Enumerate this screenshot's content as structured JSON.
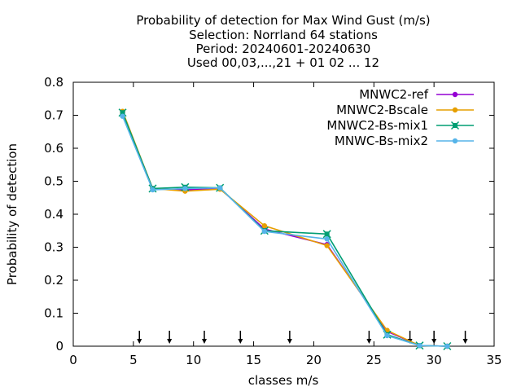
{
  "chart_data": {
    "type": "line",
    "title_lines": [
      "Probability of detection  for Max Wind Gust (m/s)",
      "Selection: Norrland     64 stations",
      "Period: 20240601-20240630",
      "Used 00,03,...,21 + 01 02 ... 12"
    ],
    "xlabel": "classes m/s",
    "ylabel": "Probability of detection",
    "xlim": [
      0,
      35
    ],
    "ylim": [
      0,
      0.8
    ],
    "xticks": [
      0,
      5,
      10,
      15,
      20,
      25,
      30,
      35
    ],
    "yticks": [
      0,
      0.1,
      0.2,
      0.3,
      0.4,
      0.5,
      0.6,
      0.7,
      0.8
    ],
    "ytick_labels": [
      "0",
      "0.1",
      "0.2",
      "0.3",
      "0.4",
      "0.5",
      "0.6",
      "0.7",
      "0.8"
    ],
    "grid": false,
    "legend_position": "top-right",
    "class_markers": [
      5.5,
      8,
      10.9,
      13.9,
      18,
      24.6,
      28,
      30,
      32.6
    ],
    "series": [
      {
        "name": "MNWC2-ref",
        "color": "#9400d3",
        "marker": "circle",
        "x": [
          4.1,
          6.6,
          9.3,
          12.2,
          15.9,
          21.1,
          26.1,
          28.8,
          31.1
        ],
        "y": [
          0.71,
          0.478,
          0.474,
          0.478,
          0.355,
          0.308,
          0.045,
          0.002,
          0.0
        ]
      },
      {
        "name": "MNWC2-Bscale",
        "color": "#e69f00",
        "marker": "circle",
        "x": [
          4.1,
          6.6,
          9.3,
          12.2,
          15.9,
          21.1,
          26.1,
          28.8,
          31.1
        ],
        "y": [
          0.712,
          0.478,
          0.47,
          0.476,
          0.365,
          0.305,
          0.048,
          0.002,
          0.0
        ]
      },
      {
        "name": "MNWC2-Bs-mix1",
        "color": "#009e73",
        "marker": "cross",
        "x": [
          4.1,
          6.6,
          9.3,
          12.2,
          15.9,
          21.1,
          26.1,
          28.8,
          31.1
        ],
        "y": [
          0.708,
          0.478,
          0.482,
          0.48,
          0.35,
          0.34,
          0.035,
          0.002,
          0.0
        ]
      },
      {
        "name": "MNWC-Bs-mix2",
        "color": "#56b4e9",
        "marker": "circle",
        "x": [
          4.1,
          6.6,
          9.3,
          12.2,
          15.9,
          21.1,
          26.1,
          28.8,
          31.1
        ],
        "y": [
          0.697,
          0.474,
          0.478,
          0.48,
          0.348,
          0.325,
          0.032,
          0.002,
          0.0
        ]
      }
    ]
  }
}
